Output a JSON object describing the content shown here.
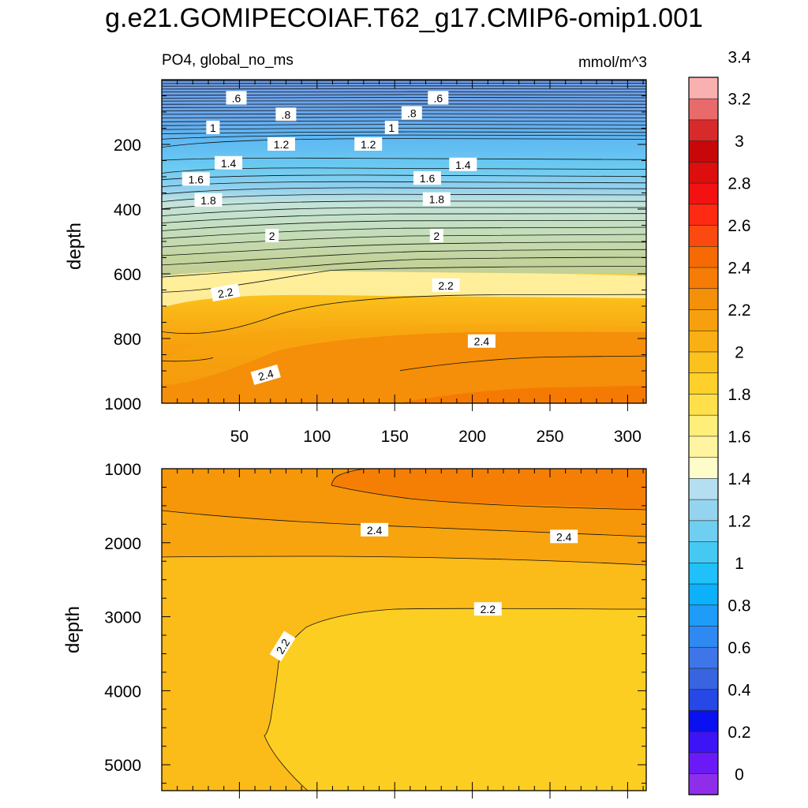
{
  "chart_data": {
    "type": "contour",
    "title": "g.e21.GOMIPECOIAF.T62_g17.CMIP6-omip1.001",
    "variable_label": "PO4, global_no_ms",
    "units_label": "mmol/m^3",
    "ylabel": "depth",
    "x_ticks": [
      "50",
      "100",
      "150",
      "200",
      "250",
      "300"
    ],
    "x_tick_values": [
      50,
      100,
      150,
      200,
      250,
      300
    ],
    "xlim": [
      0,
      312
    ],
    "upper_panel": {
      "ylim": [
        0,
        1000
      ],
      "y_ticks": [
        "200",
        "400",
        "600",
        "800",
        "1000"
      ],
      "y_tick_values": [
        200,
        400,
        600,
        800,
        1000
      ],
      "contour_labels": [
        {
          "text": ".6",
          "x": 48,
          "y": 57
        },
        {
          "text": ".6",
          "x": 178,
          "y": 57
        },
        {
          "text": ".8",
          "x": 80,
          "y": 108
        },
        {
          "text": ".8",
          "x": 161,
          "y": 104
        },
        {
          "text": "1",
          "x": 33,
          "y": 149
        },
        {
          "text": "1",
          "x": 148,
          "y": 149
        },
        {
          "text": "1.2",
          "x": 77,
          "y": 200
        },
        {
          "text": "1.2",
          "x": 133,
          "y": 200
        },
        {
          "text": "1.4",
          "x": 43,
          "y": 258
        },
        {
          "text": "1.4",
          "x": 194,
          "y": 263
        },
        {
          "text": "1.6",
          "x": 22,
          "y": 308
        },
        {
          "text": "1.6",
          "x": 171,
          "y": 305
        },
        {
          "text": "1.8",
          "x": 30,
          "y": 373
        },
        {
          "text": "1.8",
          "x": 177,
          "y": 370
        },
        {
          "text": "2",
          "x": 71,
          "y": 483
        },
        {
          "text": "2",
          "x": 177,
          "y": 483
        },
        {
          "text": "2.2",
          "x": 41,
          "y": 659
        },
        {
          "text": "2.2",
          "x": 183,
          "y": 636
        },
        {
          "text": "2.4",
          "x": 67,
          "y": 913
        },
        {
          "text": "2.4",
          "x": 206,
          "y": 809
        }
      ]
    },
    "lower_panel": {
      "ylim": [
        1000,
        5350
      ],
      "y_ticks": [
        "1000",
        "2000",
        "3000",
        "4000",
        "5000"
      ],
      "y_tick_values": [
        1000,
        2000,
        3000,
        4000,
        5000
      ],
      "contour_labels": [
        {
          "text": "2.4",
          "x": 137,
          "y": 1830
        },
        {
          "text": "2.4",
          "x": 259,
          "y": 1920
        },
        {
          "text": "2.2",
          "x": 210,
          "y": 2900
        },
        {
          "text": "2.2",
          "x": 78,
          "y": 3400
        }
      ]
    },
    "colorbar": {
      "labels": [
        "3.4",
        "3.2",
        "3",
        "2.8",
        "2.6",
        "2.4",
        "2.2",
        "2",
        "1.8",
        "1.6",
        "1.4",
        "1.2",
        "1",
        "0.8",
        "0.6",
        "0.4",
        "0.2",
        "0"
      ],
      "levels_min": -0.1,
      "levels_step": 0.1,
      "colors": [
        "#8E2EEB",
        "#6B1AF7",
        "#3D14F5",
        "#0A10F0",
        "#2548E6",
        "#3864E0",
        "#3E75E8",
        "#2E8AF2",
        "#1E9CF8",
        "#0DB0FA",
        "#20C0F8",
        "#45C9F2",
        "#70CEF0",
        "#95D4EE",
        "#B5DEF1",
        "#FFFCCC",
        "#FFF4A0",
        "#FFEE7A",
        "#FFE04A",
        "#FDD12A",
        "#FBC11C",
        "#F9B014",
        "#F7A00E",
        "#F5900A",
        "#F57C06",
        "#F56A02",
        "#FA4A10",
        "#FF2A12",
        "#F21212",
        "#DC0E0E",
        "#C80808",
        "#D82A2A",
        "#E86A6A",
        "#FBB0B0"
      ]
    }
  }
}
